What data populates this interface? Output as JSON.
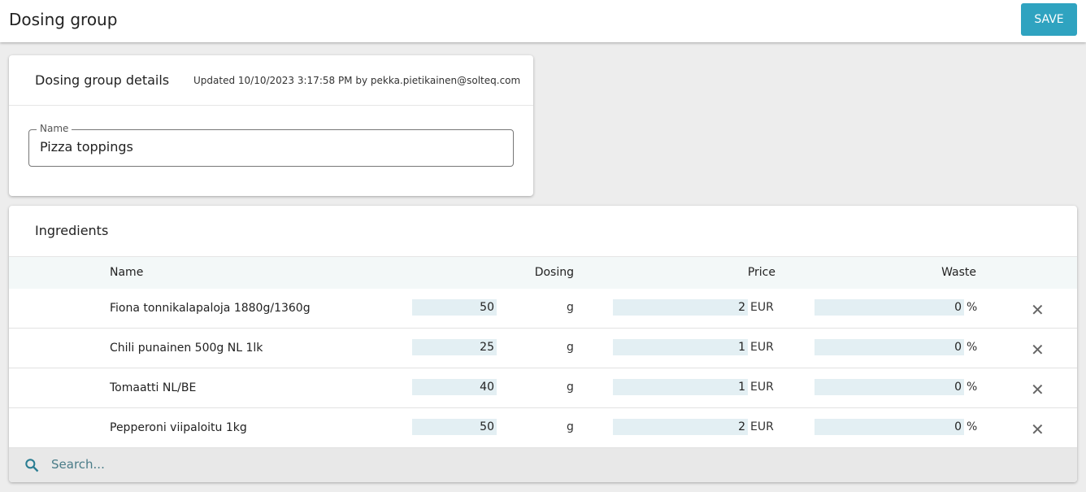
{
  "header": {
    "title": "Dosing group",
    "save_label": "SAVE"
  },
  "details": {
    "title": "Dosing group details",
    "updated": "Updated 10/10/2023 3:17:58 PM by pekka.pietikainen@solteq.com",
    "name_label": "Name",
    "name_value": "Pizza toppings"
  },
  "ingredients": {
    "title": "Ingredients",
    "columns": {
      "name": "Name",
      "dosing": "Dosing",
      "price": "Price",
      "waste": "Waste"
    },
    "rows": [
      {
        "name": "Fiona tonnikalapaloja 1880g/1360g",
        "dosing": "50",
        "dosing_unit": "g",
        "price": "2",
        "price_unit": "EUR",
        "waste": "0",
        "waste_unit": "%"
      },
      {
        "name": "Chili punainen 500g NL 1lk",
        "dosing": "25",
        "dosing_unit": "g",
        "price": "1",
        "price_unit": "EUR",
        "waste": "0",
        "waste_unit": "%"
      },
      {
        "name": "Tomaatti NL/BE",
        "dosing": "40",
        "dosing_unit": "g",
        "price": "1",
        "price_unit": "EUR",
        "waste": "0",
        "waste_unit": "%"
      },
      {
        "name": "Pepperoni viipaloitu 1kg",
        "dosing": "50",
        "dosing_unit": "g",
        "price": "2",
        "price_unit": "EUR",
        "waste": "0",
        "waste_unit": "%"
      }
    ],
    "delete_icon": "close-icon",
    "search_placeholder": "Search..."
  },
  "colors": {
    "accent": "#2fa3c0",
    "input_bg": "#e3eff3",
    "header_bg": "#f3f8f8"
  }
}
